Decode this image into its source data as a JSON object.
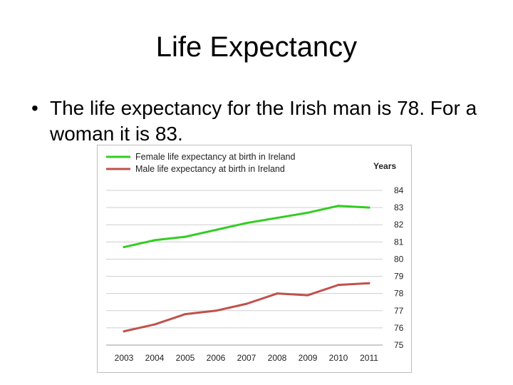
{
  "slide": {
    "title": "Life Expectancy",
    "bullet_symbol": "•",
    "bullet_text": "The life expectancy for the Irish man is 78. For a woman it is 83."
  },
  "chart_data": {
    "type": "line",
    "title": "",
    "xlabel": "",
    "ylabel": "Years",
    "x": [
      "2003",
      "2004",
      "2005",
      "2006",
      "2007",
      "2008",
      "2009",
      "2010",
      "2011"
    ],
    "ylim": [
      75,
      84
    ],
    "yticks": [
      84,
      83,
      82,
      81,
      80,
      79,
      78,
      77,
      76,
      75
    ],
    "grid": true,
    "legend_position": "top-left",
    "y_axis_side": "right",
    "series": [
      {
        "name": "Female life expectancy at birth in Ireland",
        "color": "#33cc22",
        "values": [
          80.7,
          81.1,
          81.3,
          81.7,
          82.1,
          82.4,
          82.7,
          83.1,
          83.0
        ]
      },
      {
        "name": "Male life expectancy at birth in Ireland",
        "color": "#c0504d",
        "values": [
          75.8,
          76.2,
          76.8,
          77.0,
          77.4,
          78.0,
          77.9,
          78.5,
          78.6
        ]
      }
    ]
  }
}
